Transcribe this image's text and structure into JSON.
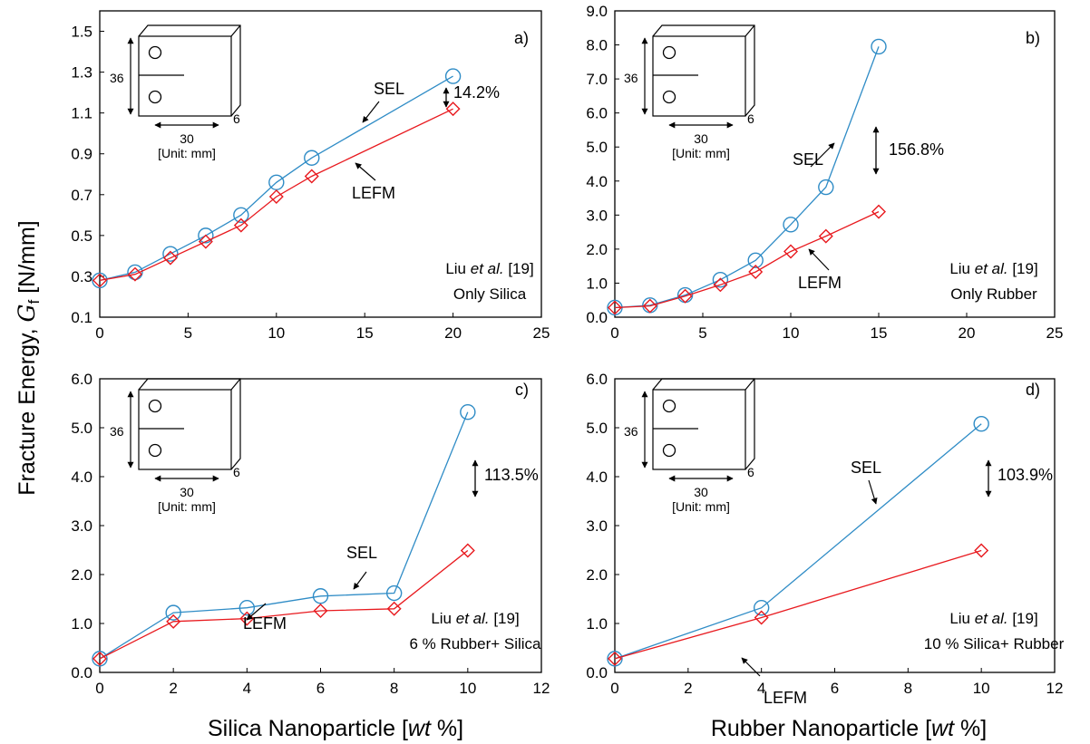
{
  "ylabel_main": "Fracture Energy, ",
  "ylabel_var": "G",
  "ylabel_sub": "f",
  "ylabel_unit": " [N/mm]",
  "xlabel_left": {
    "pre": "Silica Nanoparticle [",
    "it": "wt",
    "post": " %]"
  },
  "xlabel_right": {
    "pre": "Rubber Nanoparticle [",
    "it": "wt",
    "post": " %]"
  },
  "inset": {
    "height": "36",
    "width": "30",
    "thickness": "6",
    "unit": "[Unit: mm]"
  },
  "colors": {
    "sel": "#2f8cc6",
    "lefm": "#e8191e",
    "axis": "#000000"
  },
  "chart_data": [
    {
      "id": "a",
      "type": "line",
      "panel_label": "a)",
      "xlim": [
        0,
        25
      ],
      "xticks": [
        0,
        5,
        10,
        15,
        20,
        25
      ],
      "ylim": [
        0.1,
        1.6
      ],
      "yticks": [
        0.1,
        0.3,
        0.5,
        0.7,
        0.9,
        1.1,
        1.3,
        1.5
      ],
      "ydecimals": 1,
      "series": [
        {
          "name": "SEL",
          "marker": "circle",
          "x": [
            0,
            2,
            4,
            6,
            8,
            10,
            12,
            20
          ],
          "y": [
            0.28,
            0.32,
            0.41,
            0.5,
            0.6,
            0.76,
            0.88,
            1.28
          ]
        },
        {
          "name": "LEFM",
          "marker": "diamond",
          "x": [
            0,
            2,
            4,
            6,
            8,
            10,
            12,
            20
          ],
          "y": [
            0.28,
            0.31,
            0.39,
            0.47,
            0.55,
            0.69,
            0.79,
            1.12
          ]
        }
      ],
      "increase": "14.2%",
      "note_line1": {
        "pre": "Liu ",
        "it": "et al.",
        "post": " [19]"
      },
      "note_line2": "Only Silica"
    },
    {
      "id": "b",
      "type": "line",
      "panel_label": "b)",
      "xlim": [
        0,
        25
      ],
      "xticks": [
        0,
        5,
        10,
        15,
        20,
        25
      ],
      "ylim": [
        0,
        9
      ],
      "yticks": [
        0,
        1,
        2,
        3,
        4,
        5,
        6,
        7,
        8,
        9
      ],
      "ydecimals": 1,
      "series": [
        {
          "name": "SEL",
          "marker": "circle",
          "x": [
            0,
            2,
            4,
            6,
            8,
            10,
            12,
            15
          ],
          "y": [
            0.28,
            0.35,
            0.65,
            1.1,
            1.67,
            2.72,
            3.82,
            7.95
          ]
        },
        {
          "name": "LEFM",
          "marker": "diamond",
          "x": [
            0,
            2,
            4,
            6,
            8,
            10,
            12,
            15
          ],
          "y": [
            0.28,
            0.33,
            0.62,
            0.95,
            1.33,
            1.93,
            2.38,
            3.1
          ]
        }
      ],
      "increase": "156.8%",
      "note_line1": {
        "pre": "Liu ",
        "it": "et al.",
        "post": " [19]"
      },
      "note_line2": "Only Rubber"
    },
    {
      "id": "c",
      "type": "line",
      "panel_label": "c)",
      "xlim": [
        0,
        12
      ],
      "xticks": [
        0,
        2,
        4,
        6,
        8,
        10,
        12
      ],
      "ylim": [
        0,
        6
      ],
      "yticks": [
        0,
        1,
        2,
        3,
        4,
        5,
        6
      ],
      "ydecimals": 1,
      "series": [
        {
          "name": "SEL",
          "marker": "circle",
          "x": [
            0,
            2,
            4,
            6,
            8,
            10
          ],
          "y": [
            0.28,
            1.22,
            1.32,
            1.56,
            1.62,
            5.32
          ]
        },
        {
          "name": "LEFM",
          "marker": "diamond",
          "x": [
            0,
            2,
            4,
            6,
            8,
            10
          ],
          "y": [
            0.28,
            1.04,
            1.1,
            1.26,
            1.3,
            2.49
          ]
        }
      ],
      "increase": "113.5%",
      "note_line1": {
        "pre": "Liu ",
        "it": "et al.",
        "post": " [19]"
      },
      "note_line2": "6 % Rubber+ Silica"
    },
    {
      "id": "d",
      "type": "line",
      "panel_label": "d)",
      "xlim": [
        0,
        12
      ],
      "xticks": [
        0,
        2,
        4,
        6,
        8,
        10,
        12
      ],
      "ylim": [
        0,
        6
      ],
      "yticks": [
        0,
        1,
        2,
        3,
        4,
        5,
        6
      ],
      "ydecimals": 1,
      "series": [
        {
          "name": "SEL",
          "marker": "circle",
          "x": [
            0,
            4,
            10
          ],
          "y": [
            0.28,
            1.32,
            5.08
          ]
        },
        {
          "name": "LEFM",
          "marker": "diamond",
          "x": [
            0,
            4,
            10
          ],
          "y": [
            0.28,
            1.12,
            2.49
          ]
        }
      ],
      "increase": "103.9%",
      "note_line1": {
        "pre": "Liu ",
        "it": "et al.",
        "post": " [19]"
      },
      "note_line2": "10 % Silica+ Rubber"
    }
  ]
}
